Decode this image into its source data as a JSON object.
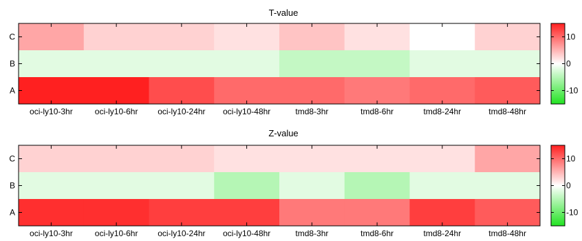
{
  "chart_data": [
    {
      "type": "heatmap",
      "title": "T-value",
      "x_categories": [
        "oci-ly10-3hr",
        "oci-ly10-6hr",
        "oci-ly10-24hr",
        "oci-ly10-48hr",
        "tmd8-3hr",
        "tmd8-6hr",
        "tmd8-24hr",
        "tmd8-48hr"
      ],
      "y_categories": [
        "C",
        "B",
        "A"
      ],
      "values": [
        [
          6,
          3,
          3,
          2,
          4,
          2,
          0,
          3
        ],
        [
          -2,
          -2,
          -2,
          -2,
          -4,
          -4,
          -2,
          -2
        ],
        [
          15,
          15,
          12,
          10,
          10,
          9,
          10,
          11
        ]
      ],
      "colorbar": {
        "min": -15,
        "max": 15,
        "ticks": [
          10,
          0,
          -10
        ],
        "colors": {
          "low": "#22e322",
          "mid": "#ffffff",
          "high": "#ff2020"
        }
      }
    },
    {
      "type": "heatmap",
      "title": "Z-value",
      "x_categories": [
        "oci-ly10-3hr",
        "oci-ly10-6hr",
        "oci-ly10-24hr",
        "oci-ly10-48hr",
        "tmd8-3hr",
        "tmd8-6hr",
        "tmd8-24hr",
        "tmd8-48hr"
      ],
      "y_categories": [
        "C",
        "B",
        "A"
      ],
      "values": [
        [
          3,
          3,
          3,
          2,
          2,
          2,
          2,
          6
        ],
        [
          -2,
          -2,
          -2,
          -5,
          -2,
          -5,
          -2,
          -2
        ],
        [
          14,
          14,
          13,
          13,
          9,
          9,
          13,
          11
        ]
      ],
      "colorbar": {
        "min": -15,
        "max": 15,
        "ticks": [
          10,
          0,
          -10
        ],
        "colors": {
          "low": "#22e322",
          "mid": "#ffffff",
          "high": "#ff2020"
        }
      }
    }
  ]
}
